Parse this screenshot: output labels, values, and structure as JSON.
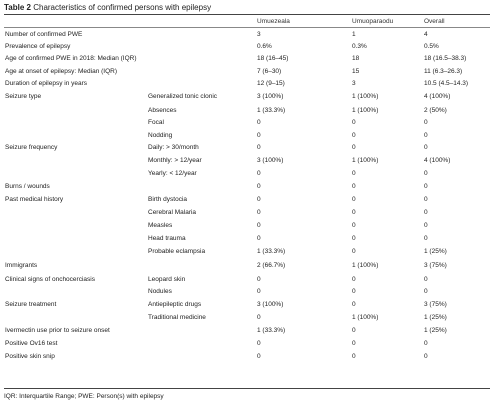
{
  "caption": {
    "label": "Table 2",
    "title": "Characteristics of confirmed persons with epilepsy"
  },
  "header": [
    "",
    "",
    "Umuezeala",
    "Umuoparaodu",
    "Overall"
  ],
  "rows": [
    [
      "Number of confirmed PWE",
      "",
      "3",
      "1",
      "4"
    ],
    [
      "Prevalence of epilepsy",
      "",
      "0.6%",
      "0.3%",
      "0.5%"
    ],
    [
      "Age of confirmed PWE in 2018: Median (IQR)",
      "",
      "18 (16–45)",
      "18",
      "18 (16.5–38.3)"
    ],
    [
      "Age at onset of epilepsy: Median (IQR)",
      "",
      "7 (6–30)",
      "15",
      "11 (6.3–26.3)"
    ],
    [
      "Duration of epilepsy in years",
      "",
      "12 (9–15)",
      "3",
      "10.5 (4.5–14.3)"
    ],
    [
      "Seizure type",
      "Generalized tonic clonic",
      "3 (100%)",
      "1 (100%)",
      "4 (100%)"
    ],
    [
      "",
      "Absences",
      "1 (33.3%)",
      "1 (100%)",
      "2 (50%)"
    ],
    [
      "",
      "Focal",
      "0",
      "0",
      "0"
    ],
    [
      "",
      "Nodding",
      "0",
      "0",
      "0"
    ],
    [
      "Seizure frequency",
      "Daily: > 30/month",
      "0",
      "0",
      "0"
    ],
    [
      "",
      "Monthly: > 12/year",
      "3 (100%)",
      "1 (100%)",
      "4 (100%)"
    ],
    [
      "",
      "Yearly: < 12/year",
      "0",
      "0",
      "0"
    ],
    [
      "Burns / wounds",
      "",
      "0",
      "0",
      "0"
    ],
    [
      "Past medical history",
      "Birth dystocia",
      "0",
      "0",
      "0"
    ],
    [
      "",
      "Cerebral Malaria",
      "0",
      "0",
      "0"
    ],
    [
      "",
      "Measles",
      "0",
      "0",
      "0"
    ],
    [
      "",
      "Head trauma",
      "0",
      "0",
      "0"
    ],
    [
      "",
      "Probable eclampsia",
      "1 (33.3%)",
      "0",
      "1 (25%)"
    ],
    [
      "Immigrants",
      "",
      "2 (66.7%)",
      "1 (100%)",
      "3 (75%)"
    ],
    [
      "Clinical signs of onchocerciasis",
      "Leopard skin",
      "0",
      "0",
      "0"
    ],
    [
      "",
      "Nodules",
      "0",
      "0",
      "0"
    ],
    [
      "Seizure treatment",
      "Antiepileptic drugs",
      "3 (100%)",
      "0",
      "3 (75%)"
    ],
    [
      "",
      "Traditional medicine",
      "0",
      "1 (100%)",
      "1 (25%)"
    ],
    [
      "Ivermectin use prior to seizure onset",
      "",
      "1 (33.3%)",
      "0",
      "1 (25%)"
    ],
    [
      "Positive Ov16 test",
      "",
      "0",
      "0",
      "0"
    ],
    [
      "Positive skin snip",
      "",
      "0",
      "0",
      "0"
    ]
  ],
  "footnote": "IQR: Interquartile Range; PWE: Person(s) with epilepsy"
}
